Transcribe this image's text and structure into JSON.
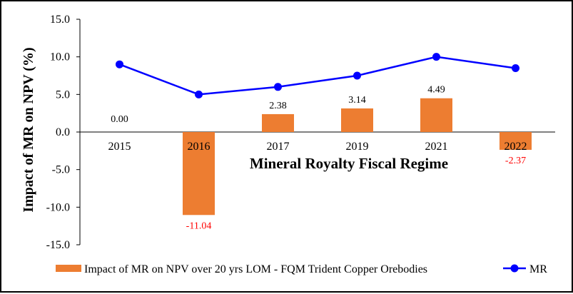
{
  "chart_data": {
    "type": "bar+line",
    "xlabel": "Mineral Royalty Fiscal Regime",
    "ylabel": "Impact of MR on NPV (%)",
    "ylim": [
      -15.0,
      15.0
    ],
    "yticks": [
      15.0,
      10.0,
      5.0,
      0.0,
      -5.0,
      -10.0,
      -15.0
    ],
    "ytick_labels": [
      "15.0",
      "10.0",
      "5.0",
      "0.0",
      "-5.0",
      "-10.0",
      "-15.0"
    ],
    "grid": false,
    "categories": [
      "2015",
      "2016",
      "2017",
      "2019",
      "2021",
      "2022"
    ],
    "series": [
      {
        "name": "Impact of MR on NPV over 20 yrs LOM - FQM Trident Copper Orebodies",
        "type": "bar",
        "color": "#ED7D31",
        "values": [
          0.0,
          -11.04,
          2.38,
          3.14,
          4.49,
          -2.37
        ],
        "labels": [
          "0.00",
          "-11.04",
          "2.38",
          "3.14",
          "4.49",
          "-2.37"
        ]
      },
      {
        "name": "MR",
        "type": "line",
        "color": "#0000FF",
        "values": [
          9.0,
          5.0,
          6.0,
          7.5,
          10.0,
          8.5
        ]
      }
    ],
    "positive_label_color": "#000000",
    "negative_label_color": "#FF0000",
    "legend_position": "bottom"
  }
}
